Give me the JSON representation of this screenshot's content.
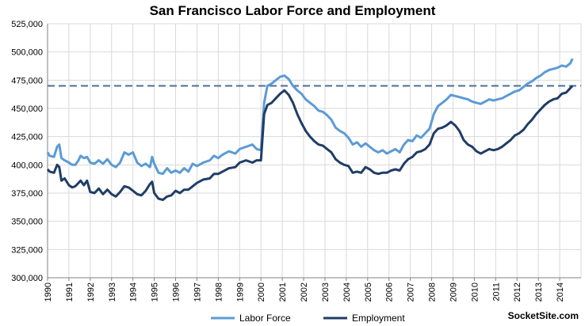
{
  "chart_data": {
    "type": "line",
    "title": "San Francisco Labor Force and Employment",
    "xlabel": "",
    "ylabel": "",
    "ylim": [
      300000,
      525000
    ],
    "xlim": [
      1990,
      2015
    ],
    "y_ticks": [
      "300,000",
      "325,000",
      "350,000",
      "375,000",
      "400,000",
      "425,000",
      "450,000",
      "475,000",
      "500,000",
      "525,000"
    ],
    "x_ticks": [
      "1990",
      "1991",
      "1992",
      "1993",
      "1994",
      "1995",
      "1996",
      "1997",
      "1998",
      "1999",
      "2000",
      "2001",
      "2002",
      "2003",
      "2004",
      "2005",
      "2006",
      "2007",
      "2008",
      "2009",
      "2010",
      "2011",
      "2012",
      "2013",
      "2014"
    ],
    "grid": true,
    "legend_position": "bottom",
    "reference_line": {
      "y": 470000,
      "style": "dashed",
      "color": "#4a6f9a"
    },
    "series": [
      {
        "name": "Labor Force",
        "color": "#5b9bd5",
        "points": [
          [
            1990.0,
            411000
          ],
          [
            1990.1,
            408000
          ],
          [
            1990.3,
            407000
          ],
          [
            1990.45,
            416000
          ],
          [
            1990.55,
            418000
          ],
          [
            1990.65,
            406000
          ],
          [
            1990.8,
            404000
          ],
          [
            1991.0,
            402000
          ],
          [
            1991.15,
            400000
          ],
          [
            1991.3,
            400000
          ],
          [
            1991.45,
            404000
          ],
          [
            1991.55,
            408000
          ],
          [
            1991.7,
            406000
          ],
          [
            1991.85,
            407000
          ],
          [
            1992.0,
            402000
          ],
          [
            1992.2,
            401000
          ],
          [
            1992.4,
            404000
          ],
          [
            1992.6,
            401000
          ],
          [
            1992.8,
            405000
          ],
          [
            1993.0,
            400000
          ],
          [
            1993.2,
            398000
          ],
          [
            1993.4,
            402000
          ],
          [
            1993.6,
            411000
          ],
          [
            1993.8,
            409000
          ],
          [
            1994.0,
            411000
          ],
          [
            1994.2,
            402000
          ],
          [
            1994.4,
            399000
          ],
          [
            1994.6,
            401000
          ],
          [
            1994.8,
            398000
          ],
          [
            1994.9,
            407000
          ],
          [
            1995.0,
            401000
          ],
          [
            1995.2,
            393000
          ],
          [
            1995.4,
            392000
          ],
          [
            1995.6,
            397000
          ],
          [
            1995.8,
            393000
          ],
          [
            1996.0,
            395000
          ],
          [
            1996.2,
            393000
          ],
          [
            1996.4,
            397000
          ],
          [
            1996.6,
            394000
          ],
          [
            1996.8,
            401000
          ],
          [
            1997.0,
            399000
          ],
          [
            1997.3,
            402000
          ],
          [
            1997.6,
            404000
          ],
          [
            1997.8,
            408000
          ],
          [
            1998.0,
            406000
          ],
          [
            1998.2,
            409000
          ],
          [
            1998.5,
            412000
          ],
          [
            1998.8,
            410000
          ],
          [
            1999.0,
            414000
          ],
          [
            1999.3,
            416000
          ],
          [
            1999.6,
            418000
          ],
          [
            1999.8,
            414000
          ],
          [
            2000.0,
            413000
          ],
          [
            2000.15,
            455000
          ],
          [
            2000.3,
            470000
          ],
          [
            2000.5,
            472000
          ],
          [
            2000.7,
            475000
          ],
          [
            2000.9,
            478000
          ],
          [
            2001.1,
            479000
          ],
          [
            2001.3,
            476000
          ],
          [
            2001.5,
            470000
          ],
          [
            2001.7,
            466000
          ],
          [
            2001.9,
            463000
          ],
          [
            2002.1,
            458000
          ],
          [
            2002.3,
            455000
          ],
          [
            2002.5,
            452000
          ],
          [
            2002.7,
            448000
          ],
          [
            2002.9,
            447000
          ],
          [
            2003.1,
            444000
          ],
          [
            2003.3,
            440000
          ],
          [
            2003.5,
            433000
          ],
          [
            2003.7,
            430000
          ],
          [
            2003.9,
            428000
          ],
          [
            2004.1,
            424000
          ],
          [
            2004.3,
            418000
          ],
          [
            2004.5,
            420000
          ],
          [
            2004.7,
            416000
          ],
          [
            2004.9,
            419000
          ],
          [
            2005.1,
            416000
          ],
          [
            2005.3,
            413000
          ],
          [
            2005.5,
            411000
          ],
          [
            2005.7,
            413000
          ],
          [
            2005.9,
            410000
          ],
          [
            2006.1,
            412000
          ],
          [
            2006.3,
            414000
          ],
          [
            2006.5,
            411000
          ],
          [
            2006.7,
            418000
          ],
          [
            2006.9,
            422000
          ],
          [
            2007.1,
            421000
          ],
          [
            2007.3,
            426000
          ],
          [
            2007.5,
            424000
          ],
          [
            2007.7,
            428000
          ],
          [
            2007.9,
            432000
          ],
          [
            2008.1,
            445000
          ],
          [
            2008.3,
            452000
          ],
          [
            2008.5,
            455000
          ],
          [
            2008.7,
            458000
          ],
          [
            2008.9,
            462000
          ],
          [
            2009.1,
            461000
          ],
          [
            2009.3,
            460000
          ],
          [
            2009.5,
            459000
          ],
          [
            2009.7,
            458000
          ],
          [
            2009.9,
            456000
          ],
          [
            2010.1,
            455000
          ],
          [
            2010.3,
            454000
          ],
          [
            2010.5,
            456000
          ],
          [
            2010.7,
            458000
          ],
          [
            2010.9,
            457000
          ],
          [
            2011.1,
            458000
          ],
          [
            2011.3,
            459000
          ],
          [
            2011.5,
            461000
          ],
          [
            2011.7,
            463000
          ],
          [
            2011.9,
            465000
          ],
          [
            2012.1,
            466000
          ],
          [
            2012.3,
            469000
          ],
          [
            2012.5,
            472000
          ],
          [
            2012.7,
            474000
          ],
          [
            2012.9,
            477000
          ],
          [
            2013.1,
            479000
          ],
          [
            2013.3,
            482000
          ],
          [
            2013.5,
            484000
          ],
          [
            2013.7,
            485000
          ],
          [
            2013.9,
            486000
          ],
          [
            2014.1,
            488000
          ],
          [
            2014.3,
            487000
          ],
          [
            2014.5,
            490000
          ],
          [
            2014.6,
            494000
          ]
        ]
      },
      {
        "name": "Employment",
        "color": "#1f3d66",
        "points": [
          [
            1990.0,
            396000
          ],
          [
            1990.1,
            394000
          ],
          [
            1990.3,
            393000
          ],
          [
            1990.45,
            400000
          ],
          [
            1990.55,
            398000
          ],
          [
            1990.65,
            386000
          ],
          [
            1990.8,
            388000
          ],
          [
            1991.0,
            382000
          ],
          [
            1991.15,
            380000
          ],
          [
            1991.3,
            381000
          ],
          [
            1991.45,
            384000
          ],
          [
            1991.55,
            386000
          ],
          [
            1991.7,
            382000
          ],
          [
            1991.85,
            386000
          ],
          [
            1992.0,
            376000
          ],
          [
            1992.2,
            375000
          ],
          [
            1992.4,
            379000
          ],
          [
            1992.6,
            374000
          ],
          [
            1992.8,
            378000
          ],
          [
            1993.0,
            374000
          ],
          [
            1993.2,
            372000
          ],
          [
            1993.4,
            376000
          ],
          [
            1993.6,
            381000
          ],
          [
            1993.8,
            380000
          ],
          [
            1994.0,
            377000
          ],
          [
            1994.2,
            374000
          ],
          [
            1994.4,
            373000
          ],
          [
            1994.6,
            377000
          ],
          [
            1994.8,
            383000
          ],
          [
            1994.9,
            385000
          ],
          [
            1995.0,
            375000
          ],
          [
            1995.2,
            370000
          ],
          [
            1995.4,
            369000
          ],
          [
            1995.6,
            372000
          ],
          [
            1995.8,
            373000
          ],
          [
            1996.0,
            377000
          ],
          [
            1996.2,
            375000
          ],
          [
            1996.4,
            378000
          ],
          [
            1996.6,
            378000
          ],
          [
            1996.8,
            381000
          ],
          [
            1997.0,
            384000
          ],
          [
            1997.3,
            387000
          ],
          [
            1997.6,
            388000
          ],
          [
            1997.8,
            392000
          ],
          [
            1998.0,
            392000
          ],
          [
            1998.2,
            394000
          ],
          [
            1998.5,
            397000
          ],
          [
            1998.8,
            398000
          ],
          [
            1999.0,
            402000
          ],
          [
            1999.3,
            404000
          ],
          [
            1999.6,
            402000
          ],
          [
            1999.8,
            404000
          ],
          [
            2000.0,
            404000
          ],
          [
            2000.15,
            445000
          ],
          [
            2000.3,
            453000
          ],
          [
            2000.5,
            455000
          ],
          [
            2000.7,
            459000
          ],
          [
            2000.9,
            463000
          ],
          [
            2001.1,
            466000
          ],
          [
            2001.3,
            462000
          ],
          [
            2001.5,
            455000
          ],
          [
            2001.7,
            445000
          ],
          [
            2001.9,
            437000
          ],
          [
            2002.1,
            430000
          ],
          [
            2002.3,
            425000
          ],
          [
            2002.5,
            421000
          ],
          [
            2002.7,
            418000
          ],
          [
            2002.9,
            417000
          ],
          [
            2003.1,
            414000
          ],
          [
            2003.3,
            411000
          ],
          [
            2003.5,
            405000
          ],
          [
            2003.7,
            402000
          ],
          [
            2003.9,
            400000
          ],
          [
            2004.1,
            399000
          ],
          [
            2004.3,
            393000
          ],
          [
            2004.5,
            394000
          ],
          [
            2004.7,
            393000
          ],
          [
            2004.9,
            398000
          ],
          [
            2005.1,
            396000
          ],
          [
            2005.3,
            393000
          ],
          [
            2005.5,
            392000
          ],
          [
            2005.7,
            393000
          ],
          [
            2005.9,
            393000
          ],
          [
            2006.1,
            395000
          ],
          [
            2006.3,
            396000
          ],
          [
            2006.5,
            395000
          ],
          [
            2006.7,
            401000
          ],
          [
            2006.9,
            405000
          ],
          [
            2007.1,
            407000
          ],
          [
            2007.3,
            411000
          ],
          [
            2007.5,
            412000
          ],
          [
            2007.7,
            414000
          ],
          [
            2007.9,
            418000
          ],
          [
            2008.1,
            428000
          ],
          [
            2008.3,
            432000
          ],
          [
            2008.5,
            433000
          ],
          [
            2008.7,
            435000
          ],
          [
            2008.9,
            438000
          ],
          [
            2009.1,
            435000
          ],
          [
            2009.3,
            430000
          ],
          [
            2009.5,
            422000
          ],
          [
            2009.7,
            418000
          ],
          [
            2009.9,
            416000
          ],
          [
            2010.1,
            412000
          ],
          [
            2010.3,
            410000
          ],
          [
            2010.5,
            412000
          ],
          [
            2010.7,
            414000
          ],
          [
            2010.9,
            413000
          ],
          [
            2011.1,
            414000
          ],
          [
            2011.3,
            416000
          ],
          [
            2011.5,
            419000
          ],
          [
            2011.7,
            422000
          ],
          [
            2011.9,
            426000
          ],
          [
            2012.1,
            428000
          ],
          [
            2012.3,
            431000
          ],
          [
            2012.5,
            436000
          ],
          [
            2012.7,
            440000
          ],
          [
            2012.9,
            445000
          ],
          [
            2013.1,
            449000
          ],
          [
            2013.3,
            453000
          ],
          [
            2013.5,
            456000
          ],
          [
            2013.7,
            458000
          ],
          [
            2013.9,
            459000
          ],
          [
            2014.1,
            463000
          ],
          [
            2014.3,
            464000
          ],
          [
            2014.5,
            468000
          ],
          [
            2014.6,
            470000
          ]
        ]
      }
    ]
  },
  "watermark": "SocketSite.com"
}
